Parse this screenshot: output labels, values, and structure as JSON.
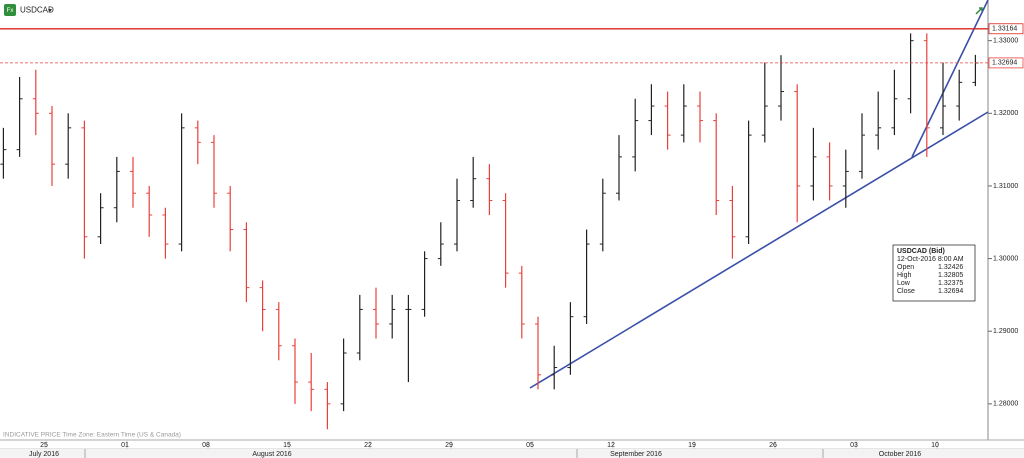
{
  "chart_data": {
    "type": "ohlc",
    "title": "USDCAD",
    "footer": "INDICATIVE PRICE   Time Zone: Eastern Time (US & Canada)",
    "categories": [
      null,
      null,
      null,
      "25",
      null,
      null,
      null,
      null,
      "01",
      null,
      null,
      null,
      null,
      "08",
      null,
      null,
      null,
      null,
      "15",
      null,
      null,
      null,
      null,
      "22",
      null,
      null,
      null,
      null,
      "29",
      null,
      null,
      null,
      null,
      "05",
      null,
      null,
      null,
      null,
      "12",
      null,
      null,
      null,
      null,
      "19",
      null,
      null,
      null,
      null,
      "26",
      null,
      null,
      null,
      null,
      "03",
      null,
      null,
      null,
      null,
      "10",
      null,
      null
    ],
    "months": [
      "July 2016",
      "August 2016",
      "September 2016",
      "October 2016"
    ],
    "series": [
      {
        "name": "USDCAD",
        "up_color": "#222222",
        "down_color": "#e8413c",
        "open": [
          1.313,
          1.315,
          1.322,
          1.32,
          1.313,
          1.318,
          1.303,
          1.307,
          1.312,
          1.309,
          1.306,
          1.302,
          1.318,
          1.316,
          1.309,
          1.304,
          1.296,
          1.293,
          1.288,
          1.283,
          1.282,
          1.28,
          1.287,
          1.293,
          1.291,
          1.293,
          1.293,
          1.3,
          1.302,
          1.308,
          1.311,
          1.308,
          1.298,
          1.291,
          1.284,
          1.285,
          1.292,
          1.302,
          1.309,
          1.314,
          1.319,
          1.321,
          1.317,
          1.321,
          1.319,
          1.308,
          1.303,
          1.317,
          1.321,
          1.323,
          1.31,
          1.314,
          1.31,
          1.312,
          1.317,
          1.318,
          1.322,
          1.33,
          1.318,
          1.321,
          1.32426
        ],
        "high": [
          1.318,
          1.325,
          1.326,
          1.321,
          1.32,
          1.319,
          1.309,
          1.314,
          1.314,
          1.31,
          1.307,
          1.32,
          1.319,
          1.317,
          1.31,
          1.305,
          1.297,
          1.294,
          1.289,
          1.287,
          1.283,
          1.289,
          1.295,
          1.296,
          1.295,
          1.295,
          1.301,
          1.305,
          1.311,
          1.314,
          1.313,
          1.309,
          1.299,
          1.292,
          1.288,
          1.294,
          1.304,
          1.311,
          1.317,
          1.322,
          1.324,
          1.323,
          1.324,
          1.323,
          1.32,
          1.31,
          1.319,
          1.327,
          1.328,
          1.324,
          1.318,
          1.316,
          1.315,
          1.32,
          1.323,
          1.326,
          1.331,
          1.331,
          1.327,
          1.326,
          1.32805
        ],
        "low": [
          1.311,
          1.314,
          1.317,
          1.31,
          1.311,
          1.3,
          1.302,
          1.305,
          1.307,
          1.303,
          1.3,
          1.301,
          1.313,
          1.307,
          1.301,
          1.294,
          1.29,
          1.286,
          1.28,
          1.279,
          1.2765,
          1.279,
          1.286,
          1.289,
          1.289,
          1.283,
          1.292,
          1.299,
          1.301,
          1.307,
          1.306,
          1.296,
          1.289,
          1.282,
          1.282,
          1.284,
          1.291,
          1.301,
          1.308,
          1.312,
          1.317,
          1.315,
          1.316,
          1.316,
          1.306,
          1.3,
          1.302,
          1.316,
          1.319,
          1.305,
          1.308,
          1.308,
          1.307,
          1.311,
          1.315,
          1.317,
          1.32,
          1.314,
          1.317,
          1.319,
          1.32375
        ],
        "close": [
          1.315,
          1.322,
          1.32,
          1.313,
          1.318,
          1.303,
          1.307,
          1.312,
          1.309,
          1.306,
          1.302,
          1.318,
          1.316,
          1.309,
          1.304,
          1.296,
          1.293,
          1.288,
          1.283,
          1.282,
          1.28,
          1.287,
          1.293,
          1.291,
          1.293,
          1.293,
          1.3,
          1.302,
          1.308,
          1.311,
          1.308,
          1.298,
          1.291,
          1.284,
          1.285,
          1.292,
          1.302,
          1.309,
          1.314,
          1.319,
          1.321,
          1.317,
          1.321,
          1.319,
          1.308,
          1.303,
          1.317,
          1.321,
          1.323,
          1.31,
          1.314,
          1.31,
          1.312,
          1.317,
          1.318,
          1.322,
          1.33,
          1.318,
          1.321,
          1.32426,
          1.32694
        ]
      }
    ],
    "ylim": [
      1.2753,
      1.3356
    ],
    "yticks": [
      {
        "value": 1.28,
        "label": "1.28000"
      },
      {
        "value": 1.29,
        "label": "1.29000"
      },
      {
        "value": 1.3,
        "label": "1.30000"
      },
      {
        "value": 1.31,
        "label": "1.31000"
      },
      {
        "value": 1.32,
        "label": "1.32000"
      },
      {
        "value": 1.33,
        "label": "1.33000"
      }
    ],
    "levels": [
      {
        "value": 1.33164,
        "color": "#d9261c",
        "style": "solid"
      },
      {
        "value": 1.32694,
        "color": "#e8413c",
        "style": "dashed"
      }
    ],
    "info": {
      "title": "USDCAD (Bid)",
      "datetime": "12-Oct-2016 8:00 AM",
      "rows": [
        {
          "label": "Open",
          "value": 1.32426
        },
        {
          "label": "High",
          "value": 1.32805
        },
        {
          "label": "Low",
          "value": 1.32375
        },
        {
          "label": "Close",
          "value": 1.32694
        }
      ]
    }
  }
}
